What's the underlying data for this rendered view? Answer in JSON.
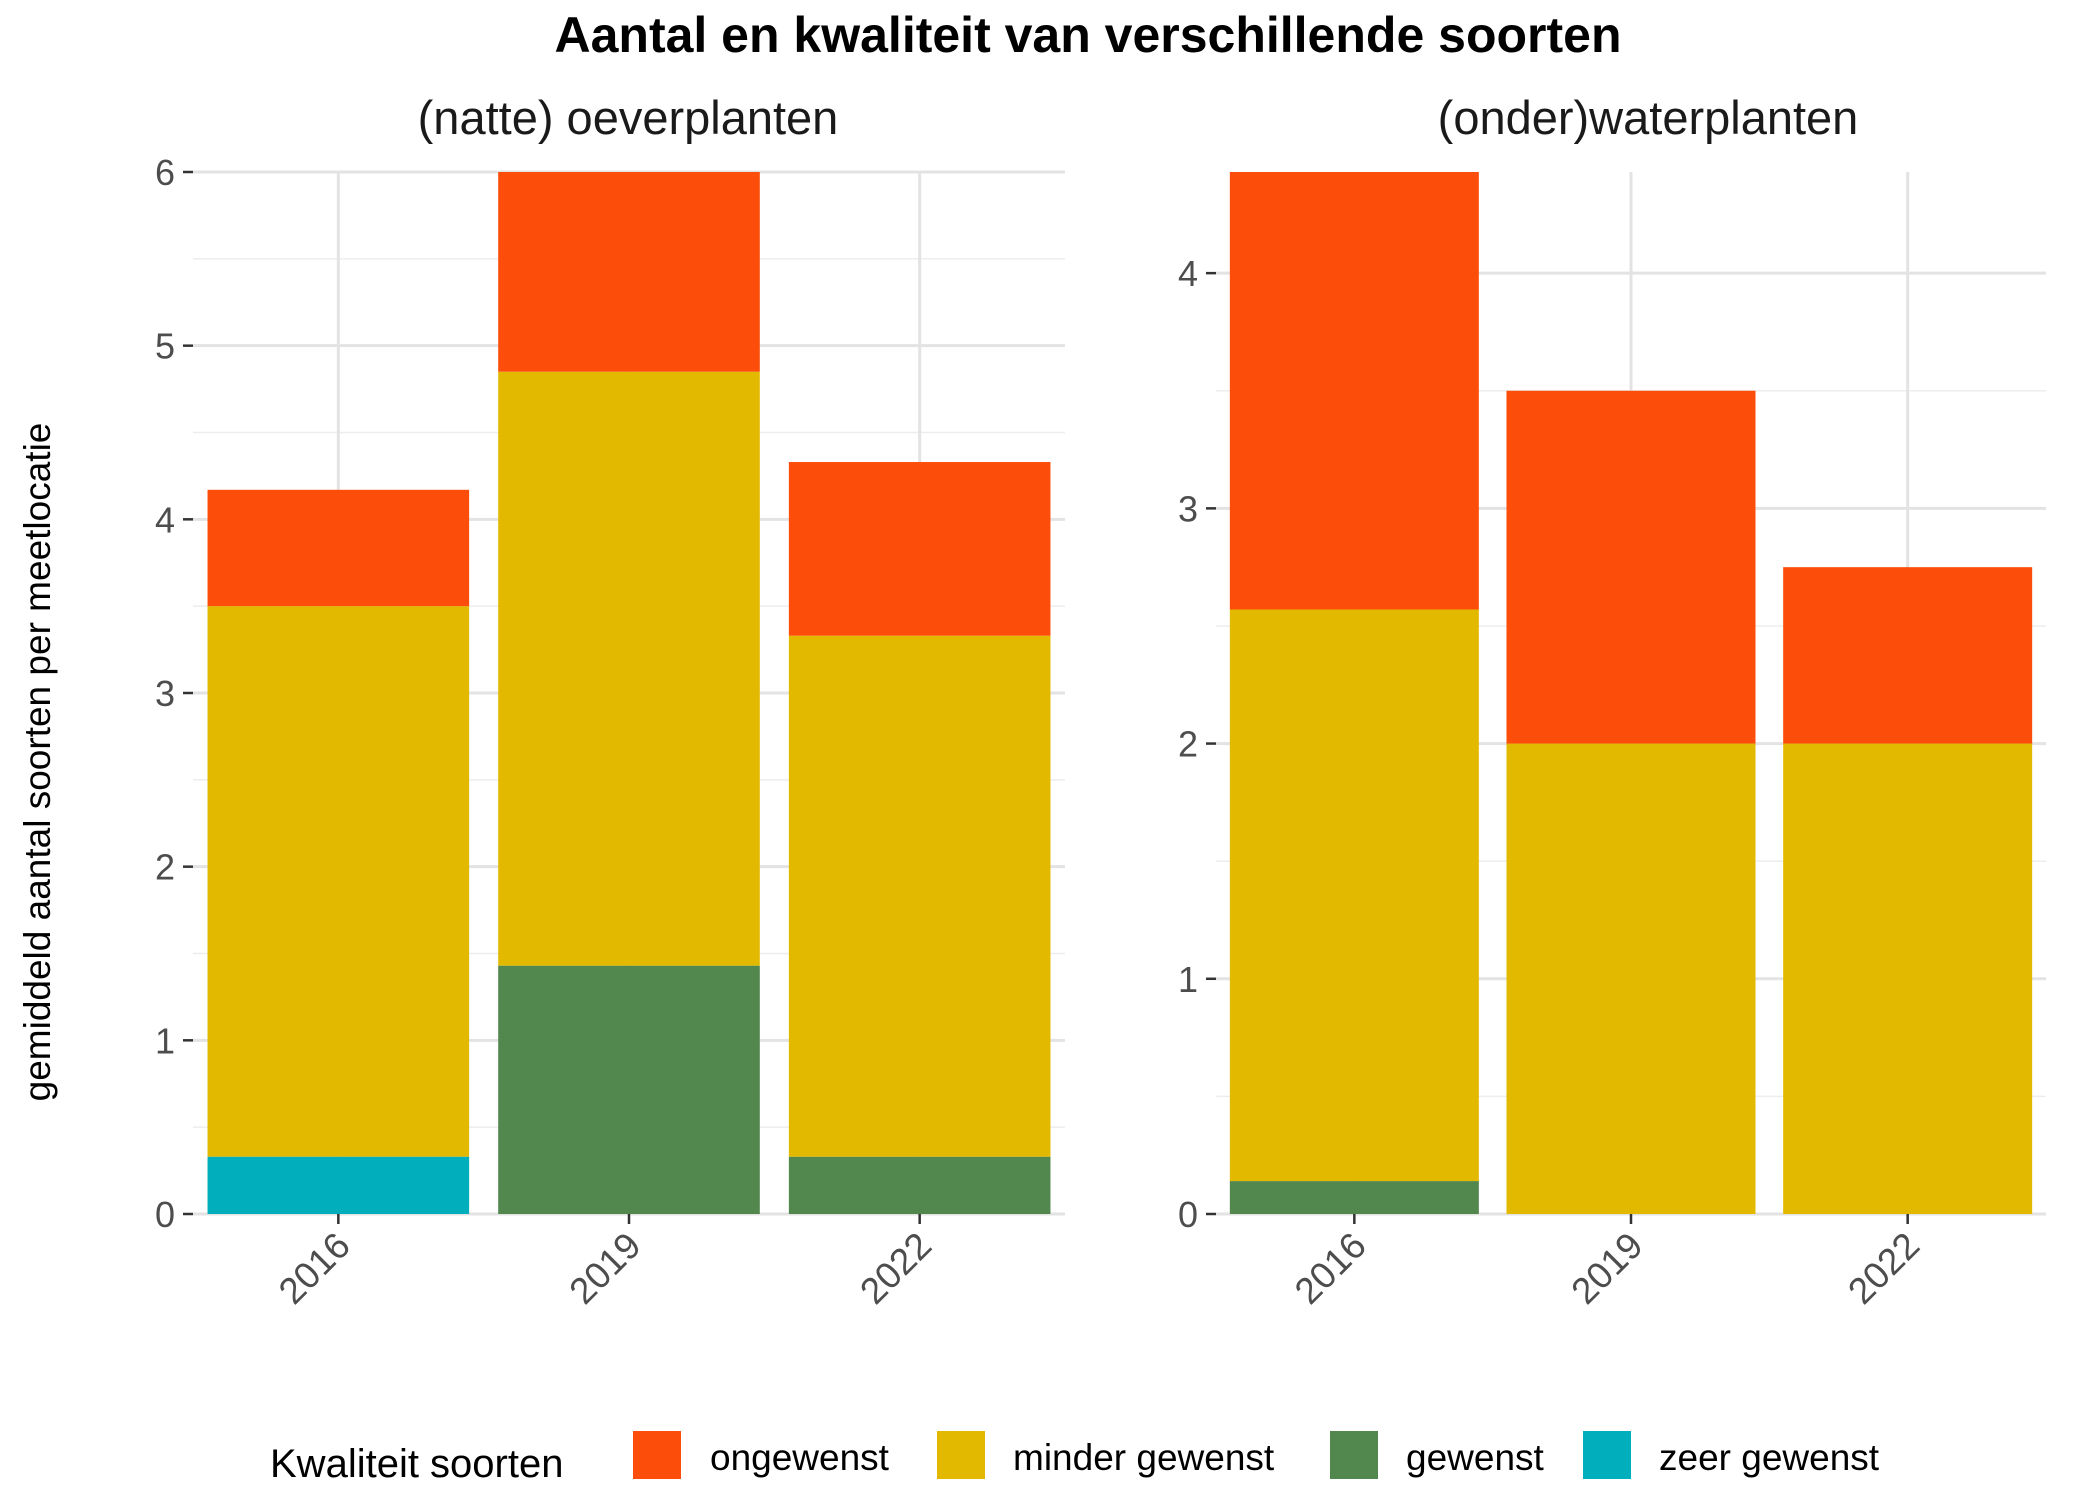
{
  "title": "Aantal en kwaliteit van verschillende soorten",
  "ylabel": "gemiddeld aantal soorten per meetlocatie",
  "legend": {
    "title": "Kwaliteit soorten",
    "placement": "bottom",
    "items": [
      {
        "key": "ongewenst",
        "label": "ongewenst",
        "color": "#FC4E0A"
      },
      {
        "key": "minder_gewenst",
        "label": "minder gewenst",
        "color": "#E3B900"
      },
      {
        "key": "gewenst",
        "label": "gewenst",
        "color": "#52874E"
      },
      {
        "key": "zeer_gewenst",
        "label": "zeer gewenst",
        "color": "#00AFBB"
      }
    ]
  },
  "chart_data": [
    {
      "type": "bar",
      "stacked": true,
      "title": "(natte) oeverplanten",
      "categories": [
        "2016",
        "2019",
        "2022"
      ],
      "ylim": [
        0,
        6
      ],
      "yticks": [
        0,
        1,
        2,
        3,
        4,
        5,
        6
      ],
      "grid": true,
      "series": [
        {
          "name": "zeer gewenst",
          "color": "#00AFBB",
          "values": [
            0.33,
            0,
            0
          ]
        },
        {
          "name": "gewenst",
          "color": "#52874E",
          "values": [
            0,
            1.43,
            0.33
          ]
        },
        {
          "name": "minder gewenst",
          "color": "#E3B900",
          "values": [
            3.17,
            3.42,
            3.0
          ]
        },
        {
          "name": "ongewenst",
          "color": "#FC4E0A",
          "values": [
            0.67,
            1.15,
            1.0
          ]
        }
      ]
    },
    {
      "type": "bar",
      "stacked": true,
      "title": "(onder)waterplanten",
      "categories": [
        "2016",
        "2019",
        "2022"
      ],
      "ylim": [
        0,
        4.43
      ],
      "yticks": [
        0,
        1,
        2,
        3,
        4
      ],
      "grid": true,
      "series": [
        {
          "name": "zeer gewenst",
          "color": "#00AFBB",
          "values": [
            0,
            0,
            0
          ]
        },
        {
          "name": "gewenst",
          "color": "#52874E",
          "values": [
            0.14,
            0,
            0
          ]
        },
        {
          "name": "minder gewenst",
          "color": "#E3B900",
          "values": [
            2.43,
            2.0,
            2.0
          ]
        },
        {
          "name": "ongewenst",
          "color": "#FC4E0A",
          "values": [
            1.86,
            1.5,
            0.75
          ]
        }
      ]
    }
  ]
}
